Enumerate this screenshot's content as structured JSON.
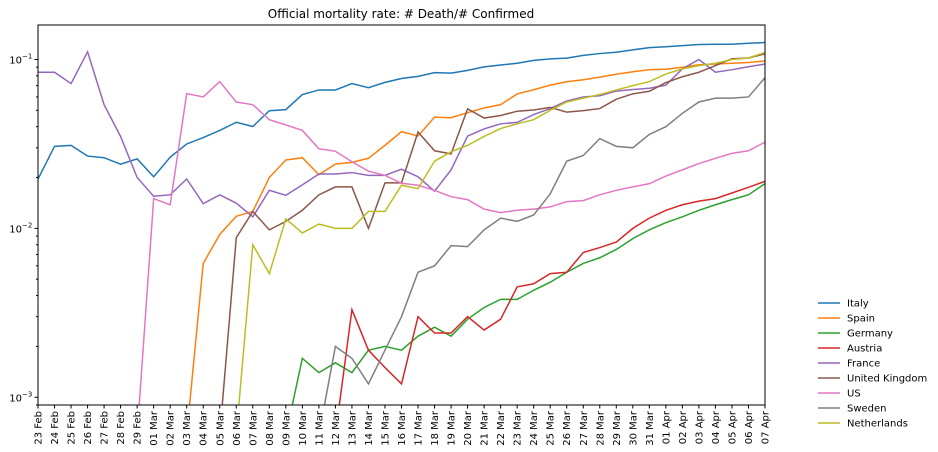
{
  "chart_data": {
    "type": "line",
    "title": "Official mortality rate: # Death/# Confirmed",
    "y_scale": "log",
    "ylim": [
      0.0009,
      0.16
    ],
    "yticks": [
      {
        "value": 0.001,
        "base": "10",
        "exp": "−3"
      },
      {
        "value": 0.01,
        "base": "10",
        "exp": "−2"
      },
      {
        "value": 0.1,
        "base": "10",
        "exp": "−1"
      }
    ],
    "legend_position": "right",
    "grid": false,
    "categories": [
      "23 Feb",
      "24 Feb",
      "25 Feb",
      "26 Feb",
      "27 Feb",
      "28 Feb",
      "29 Feb",
      "01 Mar",
      "02 Mar",
      "03 Mar",
      "04 Mar",
      "05 Mar",
      "06 Mar",
      "07 Mar",
      "08 Mar",
      "09 Mar",
      "10 Mar",
      "11 Mar",
      "12 Mar",
      "13 Mar",
      "14 Mar",
      "15 Mar",
      "16 Mar",
      "17 Mar",
      "18 Mar",
      "19 Mar",
      "20 Mar",
      "21 Mar",
      "22 Mar",
      "23 Mar",
      "24 Mar",
      "25 Mar",
      "26 Mar",
      "27 Mar",
      "28 Mar",
      "29 Mar",
      "30 Mar",
      "31 Mar",
      "01 Apr",
      "02 Apr",
      "03 Apr",
      "04 Apr",
      "05 Apr",
      "06 Apr",
      "07 Apr"
    ],
    "series": [
      {
        "name": "Italy",
        "color": "#1f77b4",
        "values": [
          0.0196,
          0.0306,
          0.031,
          0.0268,
          0.0262,
          0.024,
          0.0258,
          0.0202,
          0.0264,
          0.0316,
          0.0345,
          0.038,
          0.0425,
          0.0401,
          0.0497,
          0.0505,
          0.062,
          0.066,
          0.066,
          0.072,
          0.068,
          0.0732,
          0.0772,
          0.0794,
          0.0836,
          0.083,
          0.0862,
          0.0904,
          0.0928,
          0.095,
          0.0988,
          0.1008,
          0.1018,
          0.1058,
          0.1084,
          0.1104,
          0.114,
          0.1176,
          0.119,
          0.1208,
          0.1226,
          0.123,
          0.123,
          0.1248,
          0.126
        ]
      },
      {
        "name": "Spain",
        "color": "#ff7f0e",
        "values": [
          null,
          null,
          null,
          null,
          null,
          null,
          null,
          null,
          null,
          0.0006,
          0.0062,
          0.0092,
          0.0118,
          0.0126,
          0.02,
          0.0254,
          0.0262,
          0.0208,
          0.024,
          0.0246,
          0.026,
          0.031,
          0.0374,
          0.0352,
          0.0456,
          0.0452,
          0.0484,
          0.0516,
          0.054,
          0.0625,
          0.0662,
          0.0705,
          0.0738,
          0.0758,
          0.0786,
          0.0818,
          0.0846,
          0.087,
          0.0876,
          0.09,
          0.093,
          0.094,
          0.095,
          0.096,
          0.098
        ]
      },
      {
        "name": "Germany",
        "color": "#2ca02c",
        "values": [
          null,
          null,
          null,
          null,
          null,
          null,
          null,
          null,
          null,
          null,
          null,
          null,
          null,
          null,
          null,
          0.0006,
          0.0017,
          0.0014,
          0.0016,
          0.0014,
          0.0019,
          0.002,
          0.0019,
          0.0023,
          0.0026,
          0.0023,
          0.0029,
          0.0034,
          0.0038,
          0.0038,
          0.0043,
          0.0048,
          0.0055,
          0.0062,
          0.0067,
          0.0075,
          0.0087,
          0.0098,
          0.0108,
          0.0117,
          0.0128,
          0.0138,
          0.0148,
          0.0158,
          0.0184
        ]
      },
      {
        "name": "Austria",
        "color": "#d62728",
        "values": [
          null,
          null,
          null,
          null,
          null,
          null,
          null,
          null,
          null,
          null,
          null,
          null,
          null,
          null,
          null,
          null,
          null,
          null,
          0.0006,
          0.0033,
          0.0019,
          0.0015,
          0.0012,
          0.003,
          0.0024,
          0.0024,
          0.003,
          0.0025,
          0.0029,
          0.0045,
          0.0047,
          0.0054,
          0.0055,
          0.0072,
          0.0077,
          0.0083,
          0.01,
          0.0115,
          0.0128,
          0.0138,
          0.0145,
          0.015,
          0.0162,
          0.0175,
          0.019
        ]
      },
      {
        "name": "France",
        "color": "#9467bd",
        "values": [
          0.084,
          0.084,
          0.072,
          0.111,
          0.054,
          0.035,
          0.02,
          0.0155,
          0.0158,
          0.0196,
          0.014,
          0.0158,
          0.0141,
          0.0117,
          0.0168,
          0.0157,
          0.0181,
          0.021,
          0.021,
          0.0214,
          0.0206,
          0.0206,
          0.0224,
          0.0202,
          0.0166,
          0.0222,
          0.0352,
          0.0388,
          0.0416,
          0.0424,
          0.0472,
          0.0512,
          0.0568,
          0.06,
          0.061,
          0.065,
          0.0664,
          0.0676,
          0.0704,
          0.088,
          0.1,
          0.084,
          0.087,
          0.0905,
          0.094
        ]
      },
      {
        "name": "United Kingdom",
        "color": "#8c564b",
        "values": [
          null,
          null,
          null,
          null,
          null,
          null,
          null,
          null,
          null,
          null,
          null,
          0.0006,
          0.0088,
          0.0126,
          0.0098,
          0.011,
          0.0128,
          0.0158,
          0.0176,
          0.0176,
          0.01,
          0.0186,
          0.0186,
          0.0372,
          0.0288,
          0.0276,
          0.051,
          0.045,
          0.0466,
          0.0494,
          0.0502,
          0.052,
          0.0488,
          0.0498,
          0.0512,
          0.0582,
          0.0626,
          0.0648,
          0.073,
          0.079,
          0.084,
          0.092,
          0.101,
          0.102,
          0.108
        ]
      },
      {
        "name": "US",
        "color": "#e377c2",
        "values": [
          null,
          null,
          null,
          null,
          null,
          null,
          0.0006,
          0.015,
          0.0138,
          0.0628,
          0.06,
          0.074,
          0.056,
          0.054,
          0.044,
          0.041,
          0.038,
          0.0296,
          0.0286,
          0.0248,
          0.0218,
          0.0206,
          0.0185,
          0.018,
          0.0168,
          0.0154,
          0.0148,
          0.013,
          0.0124,
          0.0128,
          0.013,
          0.0134,
          0.0144,
          0.0146,
          0.0158,
          0.0168,
          0.0176,
          0.0184,
          0.0204,
          0.0222,
          0.0242,
          0.026,
          0.0278,
          0.0288,
          0.0324
        ]
      },
      {
        "name": "Sweden",
        "color": "#7f7f7f",
        "values": [
          null,
          null,
          null,
          null,
          null,
          null,
          null,
          null,
          null,
          null,
          null,
          null,
          null,
          null,
          null,
          null,
          null,
          0.0006,
          0.002,
          0.0017,
          0.0012,
          0.0019,
          0.003,
          0.0055,
          0.006,
          0.0079,
          0.0078,
          0.0098,
          0.0115,
          0.011,
          0.012,
          0.016,
          0.025,
          0.027,
          0.034,
          0.0306,
          0.03,
          0.036,
          0.04,
          0.048,
          0.056,
          0.059,
          0.059,
          0.06,
          0.078
        ]
      },
      {
        "name": "Netherlands",
        "color": "#bcbd22",
        "values": [
          null,
          null,
          null,
          null,
          null,
          null,
          null,
          null,
          null,
          null,
          null,
          null,
          0.0006,
          0.008,
          0.0054,
          0.0114,
          0.0094,
          0.0106,
          0.01,
          0.01,
          0.0126,
          0.0126,
          0.018,
          0.0172,
          0.025,
          0.0284,
          0.031,
          0.035,
          0.039,
          0.0416,
          0.044,
          0.05,
          0.056,
          0.059,
          0.062,
          0.066,
          0.07,
          0.074,
          0.082,
          0.088,
          0.092,
          0.095,
          0.1,
          0.102,
          0.11
        ]
      }
    ]
  }
}
